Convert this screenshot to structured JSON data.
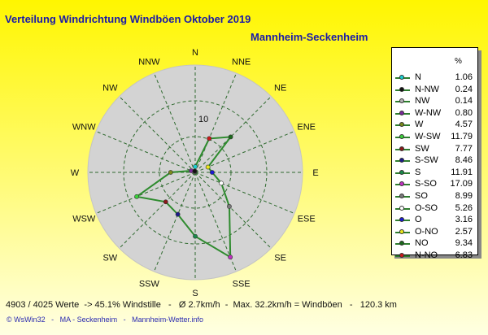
{
  "chart_data": {
    "type": "radar",
    "title": "Verteilung Windrichtung Windböen  Oktober 2019",
    "subtitle": "Mannheim-Seckenheim",
    "legend_unit": "%",
    "radial_ticks": [
      "10"
    ],
    "radial_max": 20,
    "grid": true,
    "legend_position": "right",
    "line_color": "#2e8b2e",
    "face_color": "#d3d3d3",
    "directions": [
      "N",
      "NNE",
      "NE",
      "ENE",
      "E",
      "ESE",
      "SE",
      "SSE",
      "S",
      "SSW",
      "SW",
      "WSW",
      "W",
      "WNW",
      "NW",
      "NNW"
    ],
    "series": [
      {
        "label": "N",
        "value": 1.06,
        "dir": "N",
        "color": "#1ad1d1"
      },
      {
        "label": "N-NW",
        "value": 0.24,
        "dir": "NNW",
        "color": "#111111"
      },
      {
        "label": "NW",
        "value": 0.14,
        "dir": "NW",
        "color": "#b0b0b0"
      },
      {
        "label": "W-NW",
        "value": 0.8,
        "dir": "WNW",
        "color": "#7a2a9a"
      },
      {
        "label": "W",
        "value": 4.57,
        "dir": "W",
        "color": "#7a8a1a"
      },
      {
        "label": "W-SW",
        "value": 11.79,
        "dir": "WSW",
        "color": "#3ad13a"
      },
      {
        "label": "SW",
        "value": 7.77,
        "dir": "SW",
        "color": "#8a1a1a"
      },
      {
        "label": "S-SW",
        "value": 8.46,
        "dir": "SSW",
        "color": "#1a1a8a"
      },
      {
        "label": "S",
        "value": 11.91,
        "dir": "S",
        "color": "#1a8a4a"
      },
      {
        "label": "S-SO",
        "value": 17.09,
        "dir": "SSE",
        "color": "#c030c0"
      },
      {
        "label": "SO",
        "value": 8.99,
        "dir": "SE",
        "color": "#7a7a7a"
      },
      {
        "label": "O-SO",
        "value": 5.26,
        "dir": "ESE",
        "color": "#ffffff"
      },
      {
        "label": "O",
        "value": 3.16,
        "dir": "E",
        "color": "#1a1ad1"
      },
      {
        "label": "O-NO",
        "value": 2.57,
        "dir": "ENE",
        "color": "#e8e81a"
      },
      {
        "label": "NO",
        "value": 9.34,
        "dir": "NE",
        "color": "#1a6a1a"
      },
      {
        "label": "N-NO",
        "value": 6.83,
        "dir": "NNE",
        "color": "#c81a1a"
      }
    ],
    "footer": "4903 / 4025 Werte  -> 45.1% Windstille   -   Ø 2.7km/h  -  Max. 32.2km/h = Windböen   -   120.3 km",
    "credit": "© WsWin32   -   MA - Seckenheim   -   Mannheim-Wetter.info"
  }
}
